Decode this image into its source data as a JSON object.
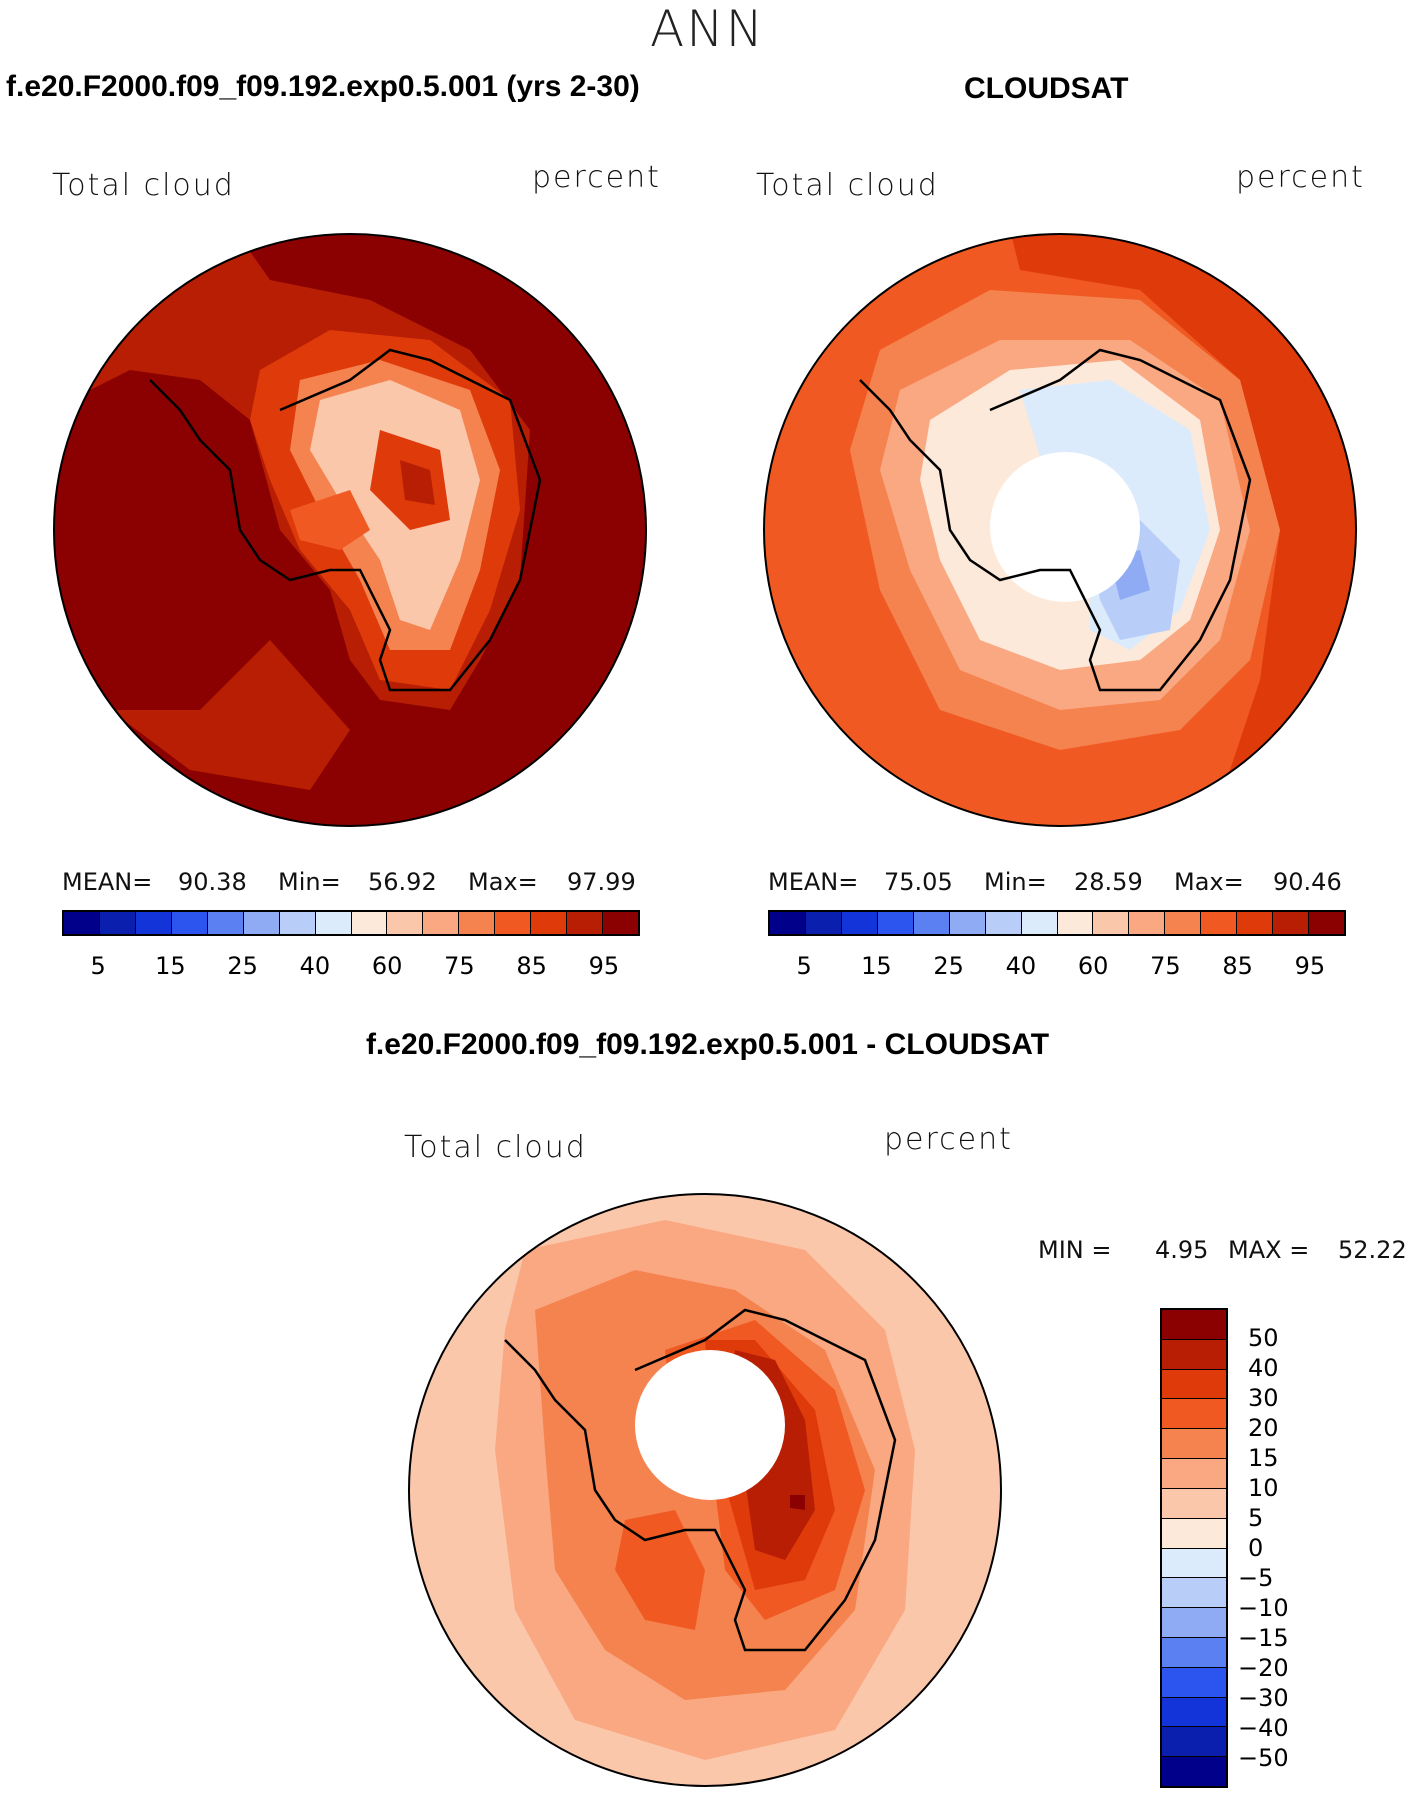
{
  "figure": {
    "title": "ANN",
    "panel1": {
      "title": "f.e20.F2000.f09_f09.192.exp0.5.001 (yrs 2-30)",
      "left_label": "Total cloud",
      "right_label": "percent",
      "mean_label": "MEAN=",
      "mean": "90.38",
      "min_label": "Min=",
      "min": "56.92",
      "max_label": "Max=",
      "max": "97.99"
    },
    "panel2": {
      "title": "CLOUDSAT",
      "left_label": "Total cloud",
      "right_label": "percent",
      "mean_label": "MEAN=",
      "mean": "75.05",
      "min_label": "Min=",
      "min": "28.59",
      "max_label": "Max=",
      "max": "90.46"
    },
    "panel3": {
      "title": "f.e20.F2000.f09_f09.192.exp0.5.001 - CLOUDSAT",
      "left_label": "Total cloud",
      "right_label": "percent",
      "min_text": "MIN =",
      "min": "4.95",
      "max_text": "MAX =",
      "max": "52.22"
    }
  },
  "abs_colorbar": {
    "colors": [
      "#00008b",
      "#0a1fae",
      "#1334d8",
      "#2c55f0",
      "#5a80f2",
      "#8fabf4",
      "#b8cdf7",
      "#dcebfb",
      "#fde9d9",
      "#fbc7ab",
      "#f9a882",
      "#f5834f",
      "#f05a22",
      "#df3a0a",
      "#b81e03",
      "#8b0000"
    ],
    "tick_labels": [
      "5",
      "15",
      "25",
      "40",
      "60",
      "75",
      "85",
      "95"
    ]
  },
  "diff_colorbar": {
    "colors": [
      "#8b0000",
      "#b81e03",
      "#df3a0a",
      "#f05a22",
      "#f5834f",
      "#f9a882",
      "#fbc7ab",
      "#fde9d9",
      "#dcebfb",
      "#b8cdf7",
      "#8fabf4",
      "#5a80f2",
      "#2c55f0",
      "#1334d8",
      "#0a1fae",
      "#00008b"
    ],
    "tick_labels": [
      "50",
      "40",
      "30",
      "20",
      "15",
      "10",
      "5",
      "0",
      "−5",
      "−10",
      "−15",
      "−20",
      "−30",
      "−40",
      "−50"
    ]
  }
}
